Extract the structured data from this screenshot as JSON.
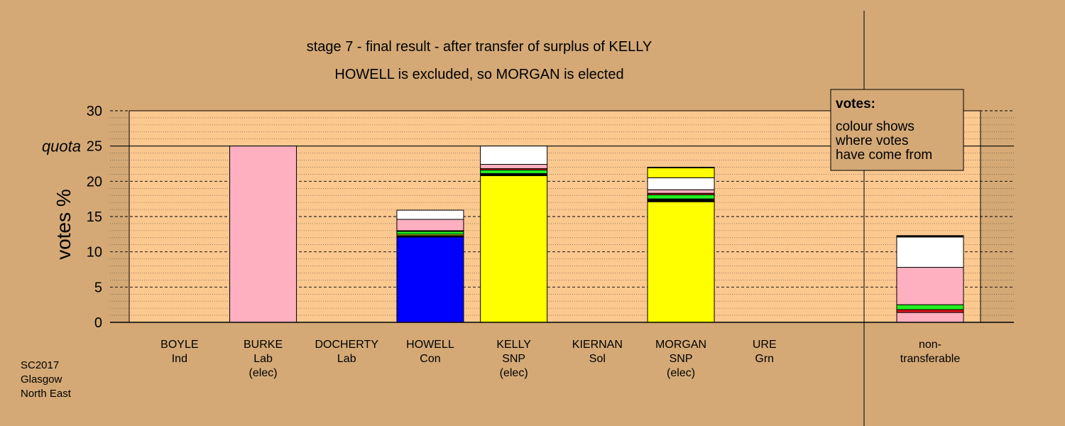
{
  "chart_data": {
    "type": "bar",
    "stacked": true,
    "title": "stage 7 - final result - after transfer of surplus of KELLY",
    "subtitle": "HOWELL is excluded, so MORGAN is elected",
    "ylabel": "votes %",
    "ylim": [
      0,
      30
    ],
    "yticks": [
      "0",
      "5",
      "10",
      "15",
      "20",
      "25",
      "30"
    ],
    "quota": {
      "label": "quota",
      "value": 25
    },
    "grid": true,
    "legend": {
      "title": "votes:",
      "lines": [
        "colour shows",
        "where votes",
        "have come from"
      ],
      "position": "top-right"
    },
    "footnote": [
      "SC2017",
      "Glasgow",
      "North East"
    ],
    "colors": {
      "background": "#d4a976",
      "plot_area": "#fbc890",
      "Ind": "#ffffff",
      "Lab": "#ffb0c0",
      "Sol": "#e01818",
      "Con": "#0000ff",
      "SNP": "#ffff00",
      "Grn": "#22ee22",
      "mixed": "#000000"
    },
    "candidates": [
      {
        "name": "BOYLE",
        "party": "Ind",
        "status": "",
        "segments": []
      },
      {
        "name": "BURKE",
        "party": "Lab",
        "status": "(elec)",
        "segments": [
          {
            "source": "Lab",
            "value": 25.0
          }
        ]
      },
      {
        "name": "DOCHERTY",
        "party": "Lab",
        "status": "",
        "segments": []
      },
      {
        "name": "HOWELL",
        "party": "Con",
        "status": "",
        "segments": [
          {
            "source": "Con",
            "value": 12.1
          },
          {
            "source": "mixed",
            "value": 0.2
          },
          {
            "source": "SNP",
            "value": 0.2
          },
          {
            "source": "Grn",
            "value": 0.4
          },
          {
            "source": "Sol",
            "value": 0.1
          },
          {
            "source": "Lab",
            "value": 1.6
          },
          {
            "source": "Ind",
            "value": 1.3
          }
        ]
      },
      {
        "name": "KELLY",
        "party": "SNP",
        "status": "(elec)",
        "segments": [
          {
            "source": "SNP",
            "value": 20.8
          },
          {
            "source": "mixed",
            "value": 0.3
          },
          {
            "source": "Grn",
            "value": 0.5
          },
          {
            "source": "Sol",
            "value": 0.2
          },
          {
            "source": "Lab",
            "value": 0.6
          },
          {
            "source": "Ind",
            "value": 2.6
          }
        ]
      },
      {
        "name": "KIERNAN",
        "party": "Sol",
        "status": "",
        "segments": []
      },
      {
        "name": "MORGAN",
        "party": "SNP",
        "status": "(elec)",
        "segments": [
          {
            "source": "SNP",
            "value": 17.1
          },
          {
            "source": "mixed",
            "value": 0.4
          },
          {
            "source": "Grn",
            "value": 0.6
          },
          {
            "source": "Sol",
            "value": 0.2
          },
          {
            "source": "Lab",
            "value": 0.5
          },
          {
            "source": "Ind",
            "value": 1.7
          },
          {
            "source": "SNP",
            "value": 1.4
          },
          {
            "source": "mixed",
            "value": 0.1
          }
        ]
      },
      {
        "name": "URE",
        "party": "Grn",
        "status": "",
        "segments": []
      }
    ],
    "non_transferable": {
      "label": [
        "non-",
        "transferable"
      ],
      "segments": [
        {
          "source": "Lab",
          "value": 1.4
        },
        {
          "source": "Sol",
          "value": 0.4
        },
        {
          "source": "Grn",
          "value": 0.7
        },
        {
          "source": "Lab",
          "value": 5.3
        },
        {
          "source": "Ind",
          "value": 4.3
        },
        {
          "source": "mixed",
          "value": 0.2
        }
      ]
    }
  }
}
